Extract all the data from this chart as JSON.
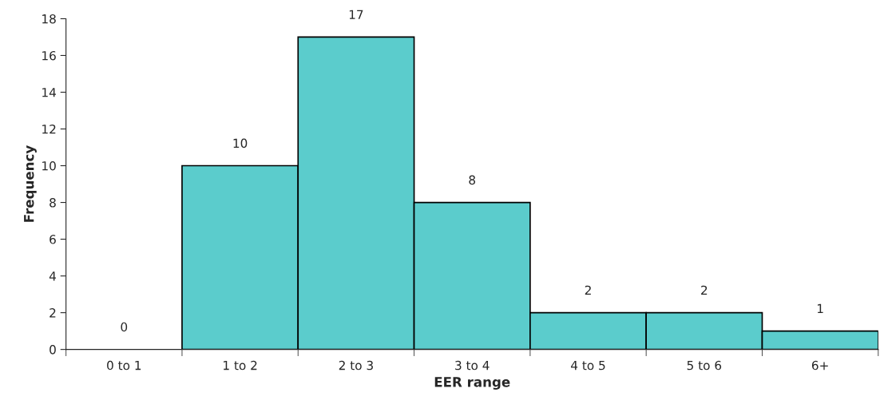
{
  "chart_data": {
    "type": "bar",
    "xlabel": "EER range",
    "ylabel": "Frequency",
    "categories": [
      "0 to 1",
      "1 to 2",
      "2 to 3",
      "3 to 4",
      "4 to 5",
      "5 to 6",
      "6+"
    ],
    "values": [
      0,
      10,
      17,
      8,
      2,
      2,
      1
    ],
    "color": "#5bcccc",
    "ylim": [
      0,
      18
    ],
    "yticks": [
      0,
      2,
      4,
      6,
      8,
      10,
      12,
      14,
      16,
      18
    ],
    "data_labels": true,
    "grid": false,
    "legend": false
  }
}
